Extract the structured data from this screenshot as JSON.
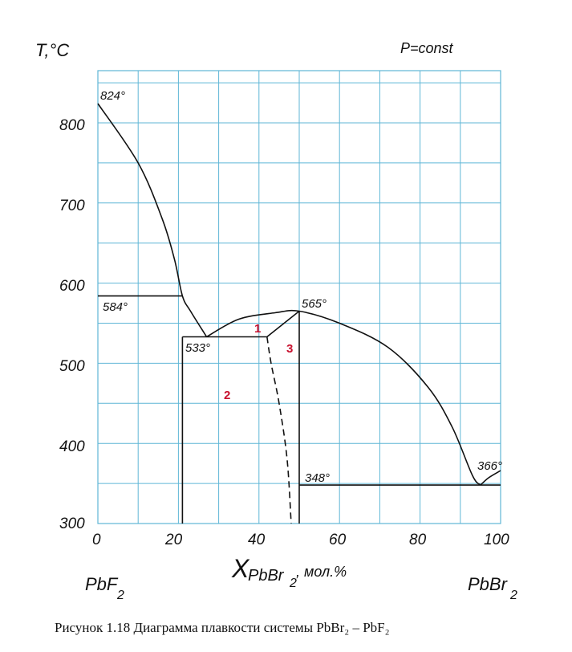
{
  "y_axis_label": "T,°C",
  "condition": "P=const",
  "x_axis_label": {
    "main": "X",
    "sub": "PbBr",
    "sub2": "2",
    "unit": ", мол.%"
  },
  "y_ticks": [
    "800",
    "700",
    "600",
    "500",
    "400",
    "300"
  ],
  "x_ticks": [
    "0",
    "20",
    "40",
    "60",
    "80",
    "100"
  ],
  "left_component": {
    "base": "PbF",
    "sub": "2"
  },
  "right_component": {
    "base": "PbBr",
    "sub": "2"
  },
  "annotations": [
    "824°",
    "584°",
    "533°",
    "565°",
    "348°",
    "366°"
  ],
  "regions": [
    "1",
    "2",
    "3"
  ],
  "caption": "Рисунок 1.18 Диаграмма плавкости системы PbBr₂ – PbF₂",
  "colors": {
    "grid": "#5fb6d6",
    "curve": "#111111",
    "region_label": "#c8102e"
  },
  "chart_data": {
    "type": "phase-diagram",
    "x_range": [
      0,
      100
    ],
    "y_range": [
      300,
      850
    ],
    "series": [
      {
        "points": [
          [
            0,
            824
          ],
          [
            10,
            750
          ],
          [
            16,
            680
          ],
          [
            19,
            630
          ],
          [
            21,
            584
          ],
          [
            23,
            565
          ],
          [
            27,
            533
          ]
        ]
      },
      {
        "points": [
          [
            27,
            533
          ],
          [
            35,
            555
          ],
          [
            44,
            563
          ],
          [
            50,
            565
          ],
          [
            60,
            550
          ],
          [
            72,
            520
          ],
          [
            82,
            470
          ],
          [
            88,
            420
          ],
          [
            93,
            360
          ],
          [
            95,
            348
          ]
        ]
      },
      {
        "points": [
          [
            95,
            348
          ],
          [
            97,
            357
          ],
          [
            100,
            366
          ]
        ]
      },
      {
        "points": [
          [
            42,
            533
          ],
          [
            50,
            565
          ]
        ]
      },
      {
        "points": [
          [
            0,
            584
          ],
          [
            21,
            584
          ]
        ]
      },
      {
        "points": [
          [
            21,
            533
          ],
          [
            42,
            533
          ]
        ]
      },
      {
        "points": [
          [
            50,
            348
          ],
          [
            100,
            348
          ]
        ]
      },
      {
        "points": [
          [
            21,
            300
          ],
          [
            21,
            533
          ]
        ]
      },
      {
        "points": [
          [
            50,
            300
          ],
          [
            50,
            565
          ]
        ]
      },
      {
        "points": [
          [
            42,
            533
          ],
          [
            43,
            500
          ],
          [
            45,
            450
          ],
          [
            47,
            380
          ],
          [
            48,
            300
          ]
        ],
        "style": "dashed"
      }
    ]
  }
}
